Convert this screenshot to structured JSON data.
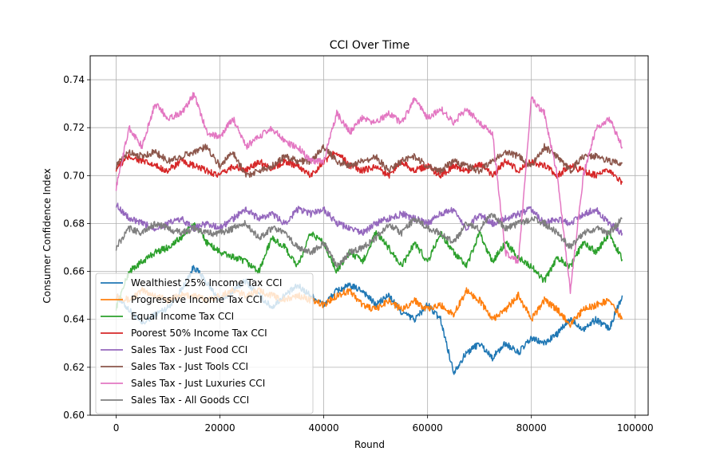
{
  "chart_data": {
    "type": "line",
    "title": "CCI Over Time",
    "xlabel": "Round",
    "ylabel": "Consumer Confidence Index",
    "xlim": [
      -5000,
      102500
    ],
    "ylim": [
      0.6,
      0.75
    ],
    "xticks": [
      0,
      20000,
      40000,
      60000,
      80000,
      100000
    ],
    "yticks": [
      0.6,
      0.62,
      0.64,
      0.66,
      0.68,
      0.7,
      0.72,
      0.74
    ],
    "ytick_labels": [
      "0.60",
      "0.62",
      "0.64",
      "0.66",
      "0.68",
      "0.70",
      "0.72",
      "0.74"
    ],
    "grid": true,
    "legend_position": "lower-left",
    "x": [
      0,
      2500,
      5000,
      7500,
      10000,
      12500,
      15000,
      17500,
      20000,
      22500,
      25000,
      27500,
      30000,
      32500,
      35000,
      37500,
      40000,
      42500,
      45000,
      47500,
      50000,
      52500,
      55000,
      57500,
      60000,
      62500,
      65000,
      67500,
      70000,
      72500,
      75000,
      77500,
      80000,
      82500,
      85000,
      87500,
      90000,
      92500,
      95000,
      97500
    ],
    "series": [
      {
        "name": "Wealthiest 25% Income Tax CCI",
        "color": "#1f77b4",
        "values": [
          0.65,
          0.644,
          0.638,
          0.642,
          0.645,
          0.652,
          0.662,
          0.655,
          0.648,
          0.652,
          0.656,
          0.65,
          0.645,
          0.65,
          0.654,
          0.65,
          0.646,
          0.652,
          0.654,
          0.652,
          0.646,
          0.65,
          0.643,
          0.64,
          0.646,
          0.64,
          0.618,
          0.626,
          0.63,
          0.624,
          0.63,
          0.626,
          0.632,
          0.63,
          0.634,
          0.64,
          0.636,
          0.64,
          0.636,
          0.65
        ]
      },
      {
        "name": "Progressive Income Tax CCI",
        "color": "#ff7f0e",
        "values": [
          0.65,
          0.648,
          0.652,
          0.65,
          0.648,
          0.65,
          0.65,
          0.648,
          0.65,
          0.652,
          0.65,
          0.652,
          0.65,
          0.648,
          0.65,
          0.648,
          0.646,
          0.65,
          0.652,
          0.646,
          0.644,
          0.648,
          0.644,
          0.648,
          0.644,
          0.646,
          0.642,
          0.652,
          0.648,
          0.64,
          0.644,
          0.65,
          0.64,
          0.648,
          0.644,
          0.638,
          0.644,
          0.646,
          0.648,
          0.64
        ]
      },
      {
        "name": "Equal Income Tax CCI",
        "color": "#2ca02c",
        "values": [
          0.645,
          0.66,
          0.664,
          0.668,
          0.67,
          0.674,
          0.68,
          0.672,
          0.668,
          0.666,
          0.664,
          0.66,
          0.674,
          0.67,
          0.662,
          0.676,
          0.672,
          0.66,
          0.668,
          0.664,
          0.676,
          0.67,
          0.662,
          0.672,
          0.664,
          0.676,
          0.668,
          0.662,
          0.676,
          0.664,
          0.672,
          0.666,
          0.662,
          0.656,
          0.666,
          0.662,
          0.672,
          0.668,
          0.676,
          0.665
        ]
      },
      {
        "name": "Poorest 50% Income Tax CCI",
        "color": "#d62728",
        "values": [
          0.703,
          0.708,
          0.706,
          0.704,
          0.702,
          0.706,
          0.704,
          0.702,
          0.7,
          0.704,
          0.702,
          0.706,
          0.703,
          0.706,
          0.704,
          0.7,
          0.706,
          0.71,
          0.704,
          0.702,
          0.704,
          0.7,
          0.706,
          0.702,
          0.704,
          0.7,
          0.704,
          0.702,
          0.705,
          0.7,
          0.706,
          0.702,
          0.706,
          0.704,
          0.7,
          0.704,
          0.702,
          0.7,
          0.702,
          0.697
        ]
      },
      {
        "name": "Sales Tax - Just Food CCI",
        "color": "#9467bd",
        "values": [
          0.688,
          0.682,
          0.68,
          0.678,
          0.68,
          0.682,
          0.678,
          0.68,
          0.678,
          0.682,
          0.686,
          0.682,
          0.684,
          0.68,
          0.686,
          0.684,
          0.686,
          0.68,
          0.678,
          0.676,
          0.68,
          0.682,
          0.684,
          0.682,
          0.68,
          0.684,
          0.686,
          0.678,
          0.684,
          0.68,
          0.682,
          0.684,
          0.686,
          0.68,
          0.682,
          0.68,
          0.684,
          0.686,
          0.68,
          0.676
        ]
      },
      {
        "name": "Sales Tax - Just Tools CCI",
        "color": "#8c564b",
        "values": [
          0.704,
          0.71,
          0.708,
          0.71,
          0.706,
          0.708,
          0.71,
          0.712,
          0.704,
          0.71,
          0.7,
          0.702,
          0.704,
          0.708,
          0.706,
          0.706,
          0.712,
          0.706,
          0.704,
          0.706,
          0.708,
          0.702,
          0.706,
          0.708,
          0.704,
          0.702,
          0.706,
          0.704,
          0.702,
          0.706,
          0.71,
          0.708,
          0.704,
          0.712,
          0.708,
          0.702,
          0.708,
          0.708,
          0.706,
          0.705
        ]
      },
      {
        "name": "Sales Tax - Just Luxuries CCI",
        "color": "#e377c2",
        "values": [
          0.695,
          0.72,
          0.712,
          0.73,
          0.724,
          0.726,
          0.734,
          0.718,
          0.716,
          0.724,
          0.712,
          0.716,
          0.72,
          0.714,
          0.712,
          0.706,
          0.706,
          0.726,
          0.718,
          0.724,
          0.722,
          0.726,
          0.722,
          0.732,
          0.724,
          0.728,
          0.722,
          0.728,
          0.722,
          0.718,
          0.668,
          0.664,
          0.732,
          0.726,
          0.7,
          0.652,
          0.7,
          0.72,
          0.724,
          0.712
        ]
      },
      {
        "name": "Sales Tax - All Goods CCI",
        "color": "#7f7f7f",
        "values": [
          0.67,
          0.678,
          0.676,
          0.68,
          0.678,
          0.676,
          0.678,
          0.676,
          0.676,
          0.678,
          0.68,
          0.674,
          0.678,
          0.676,
          0.67,
          0.668,
          0.672,
          0.662,
          0.668,
          0.67,
          0.674,
          0.68,
          0.676,
          0.682,
          0.678,
          0.676,
          0.672,
          0.68,
          0.678,
          0.684,
          0.678,
          0.68,
          0.682,
          0.68,
          0.676,
          0.67,
          0.676,
          0.678,
          0.676,
          0.682
        ]
      }
    ]
  }
}
